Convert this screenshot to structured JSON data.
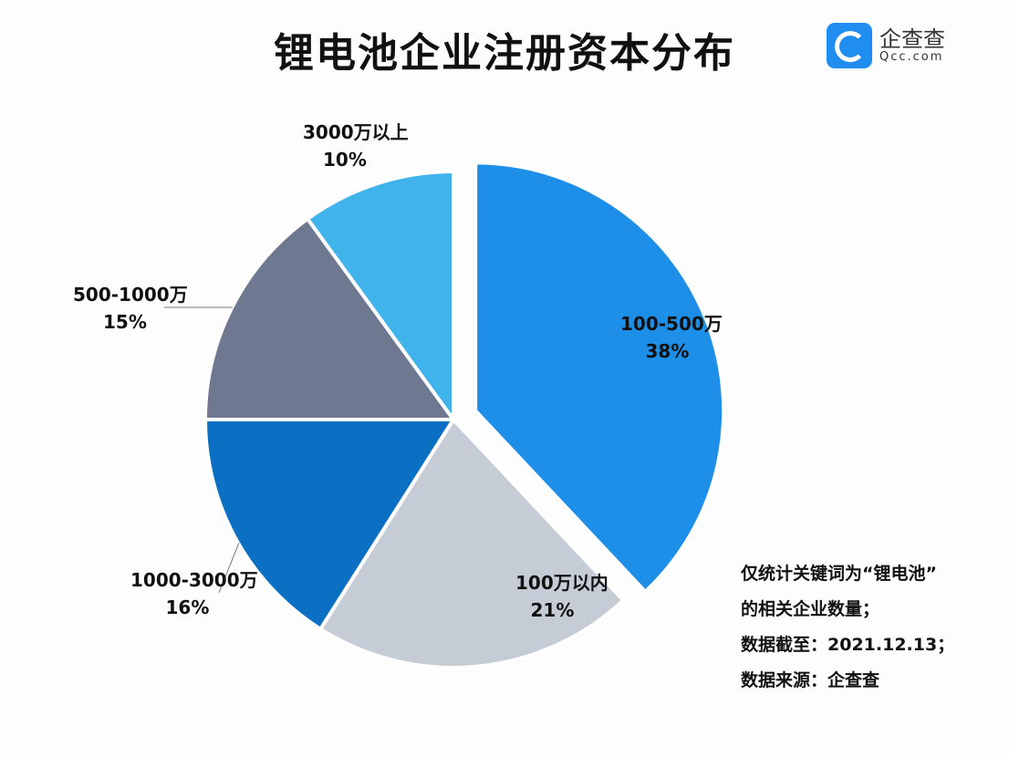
{
  "chart_data": {
    "type": "pie",
    "title": "锂电池企业注册资本分布",
    "slices": [
      {
        "label": "100-500万",
        "value": 38,
        "pct_label": "38%",
        "color": "#1e8fe8",
        "exploded": true
      },
      {
        "label": "100万以内",
        "value": 21,
        "pct_label": "21%",
        "color": "#c5ccd6"
      },
      {
        "label": "1000-3000万",
        "value": 16,
        "pct_label": "16%",
        "color": "#0b6fc3"
      },
      {
        "label": "500-1000万",
        "value": 15,
        "pct_label": "15%",
        "color": "#6e7890"
      },
      {
        "label": "3000万以上",
        "value": 10,
        "pct_label": "10%",
        "color": "#40b3ea"
      }
    ],
    "start": "top",
    "direction": "clockwise"
  },
  "logo": {
    "cn": "企查查",
    "en": "Qcc.com",
    "color": "#1f8ef0"
  },
  "notes": [
    "仅统计关键词为“锂电池”",
    "的相关企业数量；",
    "数据截至：2021.12.13；",
    "数据来源：企查查"
  ]
}
